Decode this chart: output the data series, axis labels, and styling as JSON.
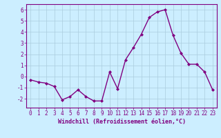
{
  "x": [
    0,
    1,
    2,
    3,
    4,
    5,
    6,
    7,
    8,
    9,
    10,
    11,
    12,
    13,
    14,
    15,
    16,
    17,
    18,
    19,
    20,
    21,
    22,
    23
  ],
  "y": [
    -0.3,
    -0.5,
    -0.6,
    -0.9,
    -2.1,
    -1.8,
    -1.2,
    -1.8,
    -2.2,
    -2.2,
    0.4,
    -1.1,
    1.5,
    2.6,
    3.8,
    5.3,
    5.8,
    6.0,
    3.7,
    2.1,
    1.1,
    1.1,
    0.4,
    -1.2
  ],
  "line_color": "#800080",
  "marker": "D",
  "markersize": 2.0,
  "linewidth": 1.0,
  "bg_color": "#cceeff",
  "grid_color": "#aaccdd",
  "xlabel": "Windchill (Refroidissement éolien,°C)",
  "xlabel_fontsize": 6.0,
  "tick_fontsize": 5.5,
  "xlim": [
    -0.5,
    23.5
  ],
  "ylim": [
    -2.8,
    6.5
  ],
  "yticks": [
    -2,
    -1,
    0,
    1,
    2,
    3,
    4,
    5,
    6
  ],
  "xticks": [
    0,
    1,
    2,
    3,
    4,
    5,
    6,
    7,
    8,
    9,
    10,
    11,
    12,
    13,
    14,
    15,
    16,
    17,
    18,
    19,
    20,
    21,
    22,
    23
  ]
}
